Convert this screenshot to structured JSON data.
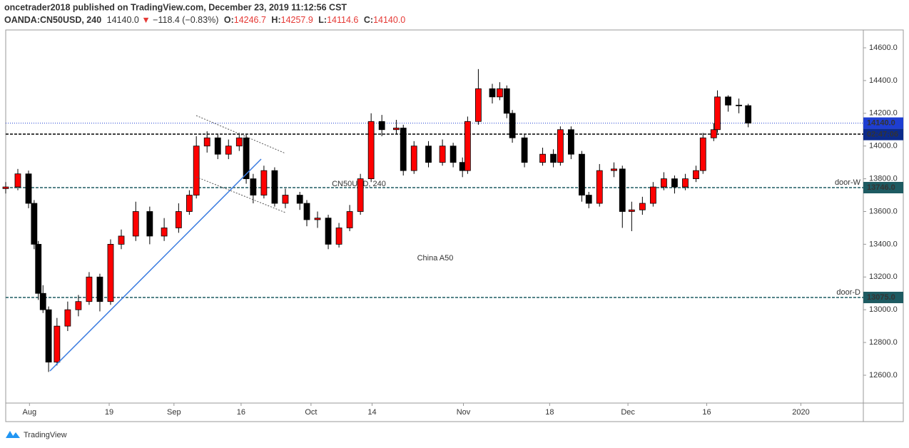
{
  "header": {
    "author_line": "oncetrader2018 published on TradingView.com, December 23, 2019 11:12:56 CST",
    "symbol": "OANDA:CN50USD, 240",
    "last": "14140.0",
    "direction": "▼",
    "change": "−118.4 (−0.83%)",
    "ohlc": [
      {
        "key": "O:",
        "value": "14246.7"
      },
      {
        "key": "H:",
        "value": "14257.9"
      },
      {
        "key": "L:",
        "value": "14114.6"
      },
      {
        "key": "C:",
        "value": "14140.0"
      }
    ]
  },
  "watermark": {
    "symbol": "CN50USD, 240",
    "description": "China A50"
  },
  "footer": {
    "brand": "TradingView"
  },
  "chart_data": {
    "type": "candlestick",
    "up_color": "#ff0000",
    "down_color": "#000000",
    "wick_color": "#000000",
    "x": [
      0,
      2.6,
      4.9,
      6.1,
      7.0,
      8.0,
      9.2,
      11.0,
      13.3,
      15.6,
      17.9,
      20.2,
      22.5,
      24.8,
      27.9,
      30.9,
      34.0,
      37.1,
      39.4,
      40.9,
      43.2,
      45.5,
      47.8,
      50.1,
      51.6,
      53.1,
      55.4,
      57.7,
      60.0,
      63.1,
      64.6,
      66.9,
      69.2,
      71.5,
      73.8,
      76.1,
      78.4,
      80.7,
      83.8,
      85.3,
      87.6,
      90.7,
      93.7,
      96.0,
      98.0,
      99.1,
      101.4,
      104.4,
      106.0,
      107.5,
      108.7,
      111.3,
      115.2,
      117.5,
      119.0,
      121.3,
      123.6,
      125.1,
      127.4,
      130.5,
      132.3,
      134.3,
      136.6,
      138.9,
      141.2,
      143.5,
      145.8,
      148.1,
      149.6,
      151.9,
      152.7,
      155.0,
      157.3,
      159.3
    ],
    "open": [
      13740,
      13750,
      13830,
      13650,
      13400,
      13100,
      13000,
      12680,
      12900,
      13000,
      13050,
      13200,
      13050,
      13400,
      13450,
      13600,
      13450,
      13500,
      13600,
      13700,
      14000,
      14050,
      13950,
      14000,
      14050,
      13800,
      13700,
      13850,
      13650,
      13700,
      13650,
      13550,
      13560,
      13400,
      13500,
      13600,
      13800,
      14150,
      14100,
      14110,
      13850,
      14000,
      13900,
      14000,
      13900,
      13850,
      14150,
      14350,
      14300,
      14350,
      14200,
      14050,
      13900,
      13950,
      13900,
      14100,
      13950,
      13700,
      13650,
      13850,
      13860,
      13600,
      13610,
      13650,
      13750,
      13800,
      13750,
      13800,
      13850,
      14050,
      14100,
      14300,
      14250,
      14246.7
    ],
    "high": [
      13780,
      13860,
      13850,
      13670,
      13420,
      13150,
      13020,
      12950,
      13050,
      13090,
      13230,
      13220,
      13430,
      13490,
      13660,
      13630,
      13560,
      13650,
      13730,
      14060,
      14090,
      14070,
      14040,
      14080,
      14070,
      13830,
      13880,
      13870,
      13740,
      13720,
      13670,
      13600,
      13580,
      13530,
      13640,
      13830,
      14200,
      14190,
      14160,
      14130,
      14030,
      14030,
      14040,
      14020,
      13930,
      14180,
      14470,
      14380,
      14390,
      14370,
      14220,
      14070,
      13990,
      13980,
      14120,
      14120,
      13970,
      13720,
      13890,
      13900,
      13880,
      13660,
      13690,
      13780,
      13840,
      13820,
      13830,
      13880,
      14080,
      14140,
      14340,
      14310,
      14290,
      14257.9
    ],
    "low": [
      13710,
      13730,
      13620,
      13370,
      13060,
      12980,
      12620,
      12660,
      12870,
      12960,
      13030,
      12990,
      13030,
      13370,
      13420,
      13400,
      13420,
      13470,
      13580,
      13680,
      13960,
      13920,
      13920,
      13970,
      13770,
      13650,
      13680,
      13630,
      13620,
      13610,
      13510,
      13500,
      13370,
      13380,
      13480,
      13580,
      13780,
      14060,
      14070,
      13820,
      13830,
      13870,
      13880,
      13870,
      13810,
      13830,
      14130,
      14260,
      14280,
      14170,
      14020,
      13870,
      13880,
      13870,
      13880,
      13920,
      13660,
      13620,
      13630,
      13810,
      13500,
      13480,
      13580,
      13630,
      13730,
      13710,
      13730,
      13780,
      13830,
      14030,
      14080,
      14210,
      14200,
      14114.6
    ],
    "close": [
      13750,
      13830,
      13650,
      13400,
      13100,
      13000,
      12680,
      12900,
      13000,
      13050,
      13200,
      13050,
      13400,
      13450,
      13600,
      13450,
      13500,
      13600,
      13700,
      14000,
      14050,
      13950,
      14000,
      14050,
      13800,
      13700,
      13850,
      13650,
      13700,
      13650,
      13550,
      13560,
      13400,
      13500,
      13600,
      13800,
      14150,
      14100,
      14110,
      13850,
      14000,
      13900,
      14000,
      13900,
      13850,
      14150,
      14350,
      14300,
      14350,
      14200,
      14050,
      13900,
      13950,
      13900,
      14100,
      13950,
      13700,
      13650,
      13850,
      13860,
      13600,
      13610,
      13650,
      13750,
      13800,
      13750,
      13800,
      13850,
      14050,
      14100,
      14300,
      14250,
      14246.7,
      14140.0
    ],
    "xlim": [
      0,
      184
    ],
    "xticks": [
      {
        "value": 5.1,
        "label": "Aug"
      },
      {
        "value": 22.2,
        "label": "19"
      },
      {
        "value": 36.1,
        "label": "Sep"
      },
      {
        "value": 50.5,
        "label": "16"
      },
      {
        "value": 65.5,
        "label": "Oct"
      },
      {
        "value": 78.6,
        "label": "14"
      },
      {
        "value": 98.2,
        "label": "Nov"
      },
      {
        "value": 116.7,
        "label": "18"
      },
      {
        "value": 133.5,
        "label": "Dec"
      },
      {
        "value": 150.4,
        "label": "16"
      },
      {
        "value": 170.6,
        "label": "2020"
      }
    ],
    "ylim": [
      12430,
      14709
    ],
    "yticks": [
      {
        "value": 12600,
        "label": "12600.0"
      },
      {
        "value": 12800,
        "label": "12800.0"
      },
      {
        "value": 13000,
        "label": "13000.0"
      },
      {
        "value": 13200,
        "label": "13200.0"
      },
      {
        "value": 13400,
        "label": "13400.0"
      },
      {
        "value": 13600,
        "label": "13600.0"
      },
      {
        "value": 13800,
        "label": "13800.0"
      },
      {
        "value": 14000,
        "label": "14000.0"
      },
      {
        "value": 14200,
        "label": "14200.0"
      },
      {
        "value": 14400,
        "label": "14400.0"
      },
      {
        "value": 14600,
        "label": "14600.0"
      }
    ],
    "levels": [
      {
        "value": 13746,
        "label": "13746.0",
        "name": "door-W",
        "color": "#1e5b62"
      },
      {
        "value": 13075,
        "label": "13075.0",
        "name": "door-D",
        "color": "#1e5b62"
      }
    ],
    "plain_levels": [
      {
        "value": 14073,
        "color": "#000000"
      }
    ],
    "current_price": {
      "value": 14140,
      "label": "14140.0",
      "countdown": "02:47:06",
      "color": "#1e3ed2",
      "countdown_color": "#0c2a8a"
    }
  }
}
